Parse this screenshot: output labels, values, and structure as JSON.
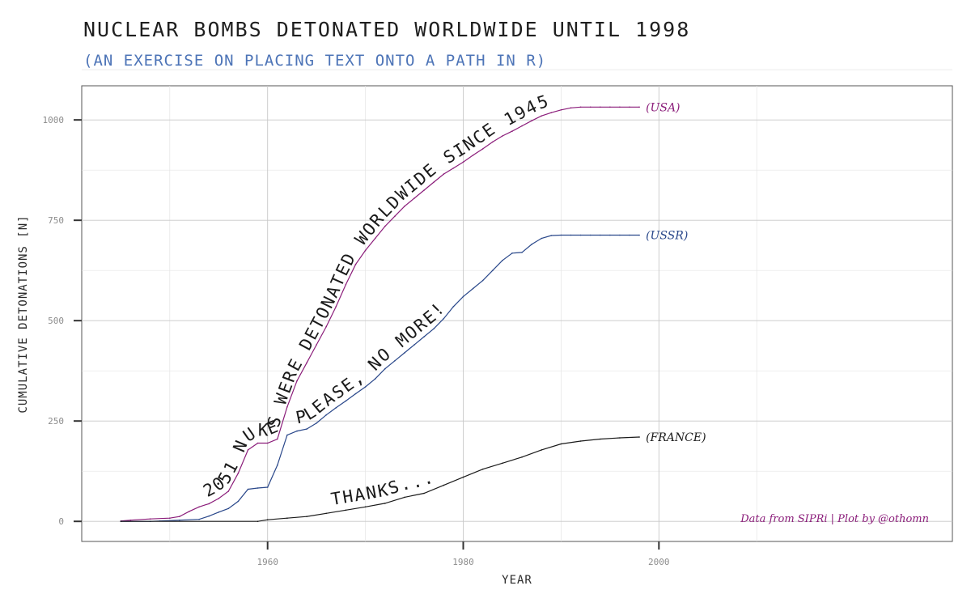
{
  "chart_data": {
    "type": "line",
    "title": "NUCLEAR BOMBS DETONATED WORLDWIDE UNTIL 1998",
    "subtitle": "(AN EXERCISE ON PLACING TEXT ONTO A PATH IN R)",
    "xlabel": "YEAR",
    "ylabel": "CUMULATIVE DETONATIONS [N]",
    "xlim": [
      1941,
      2030
    ],
    "ylim": [
      -50,
      1085
    ],
    "x_ticks": [
      1960,
      1980,
      2000
    ],
    "y_ticks": [
      0,
      250,
      500,
      750,
      1000
    ],
    "grid": true,
    "caption": "Data from SIPRi | Plot by @othomn",
    "series": [
      {
        "name": "(USA)",
        "color": "#8b1d7a",
        "path_text": "2051 NUKES WERE DETONATED WORLDWIDE SINCE 1945",
        "x": [
          1945,
          1946,
          1948,
          1950,
          1951,
          1952,
          1953,
          1954,
          1955,
          1956,
          1957,
          1958,
          1959,
          1960,
          1961,
          1962,
          1963,
          1964,
          1965,
          1966,
          1967,
          1968,
          1969,
          1970,
          1971,
          1972,
          1973,
          1974,
          1975,
          1976,
          1977,
          1978,
          1979,
          1980,
          1981,
          1982,
          1983,
          1984,
          1985,
          1986,
          1987,
          1988,
          1989,
          1990,
          1991,
          1992,
          1993,
          1994,
          1995,
          1996,
          1997,
          1998
        ],
        "y": [
          1,
          3,
          6,
          8,
          12,
          25,
          36,
          44,
          57,
          75,
          120,
          178,
          195,
          195,
          205,
          285,
          350,
          395,
          440,
          485,
          535,
          590,
          640,
          675,
          705,
          735,
          760,
          785,
          805,
          825,
          845,
          865,
          880,
          895,
          912,
          928,
          945,
          960,
          972,
          985,
          998,
          1010,
          1018,
          1025,
          1030,
          1032,
          1032,
          1032,
          1032,
          1032,
          1032,
          1032
        ]
      },
      {
        "name": "(USSR)",
        "color": "#29478a",
        "path_text": "PLEASE, NO MORE!",
        "x": [
          1945,
          1948,
          1949,
          1951,
          1953,
          1954,
          1955,
          1956,
          1957,
          1958,
          1959,
          1960,
          1961,
          1962,
          1963,
          1964,
          1965,
          1966,
          1967,
          1968,
          1969,
          1970,
          1971,
          1972,
          1973,
          1974,
          1975,
          1976,
          1977,
          1978,
          1979,
          1980,
          1981,
          1982,
          1983,
          1984,
          1985,
          1986,
          1987,
          1988,
          1989,
          1990,
          1991,
          1992,
          1993,
          1994,
          1995,
          1996,
          1997,
          1998
        ],
        "y": [
          0,
          0,
          1,
          3,
          5,
          13,
          23,
          32,
          50,
          80,
          83,
          85,
          140,
          215,
          225,
          230,
          245,
          265,
          283,
          300,
          318,
          335,
          355,
          380,
          400,
          420,
          440,
          460,
          480,
          505,
          535,
          560,
          580,
          600,
          625,
          650,
          668,
          670,
          690,
          705,
          712,
          713,
          713,
          713,
          713,
          713,
          713,
          713,
          713,
          713
        ]
      },
      {
        "name": "(FRANCE)",
        "color": "#1a1a1a",
        "path_text": "THANKS...",
        "x": [
          1945,
          1959,
          1960,
          1962,
          1964,
          1966,
          1968,
          1970,
          1972,
          1974,
          1976,
          1978,
          1980,
          1982,
          1984,
          1986,
          1988,
          1990,
          1992,
          1994,
          1996,
          1998
        ],
        "y": [
          0,
          0,
          4,
          8,
          12,
          20,
          28,
          36,
          45,
          60,
          70,
          90,
          110,
          130,
          145,
          160,
          178,
          193,
          200,
          205,
          208,
          210
        ]
      }
    ]
  }
}
